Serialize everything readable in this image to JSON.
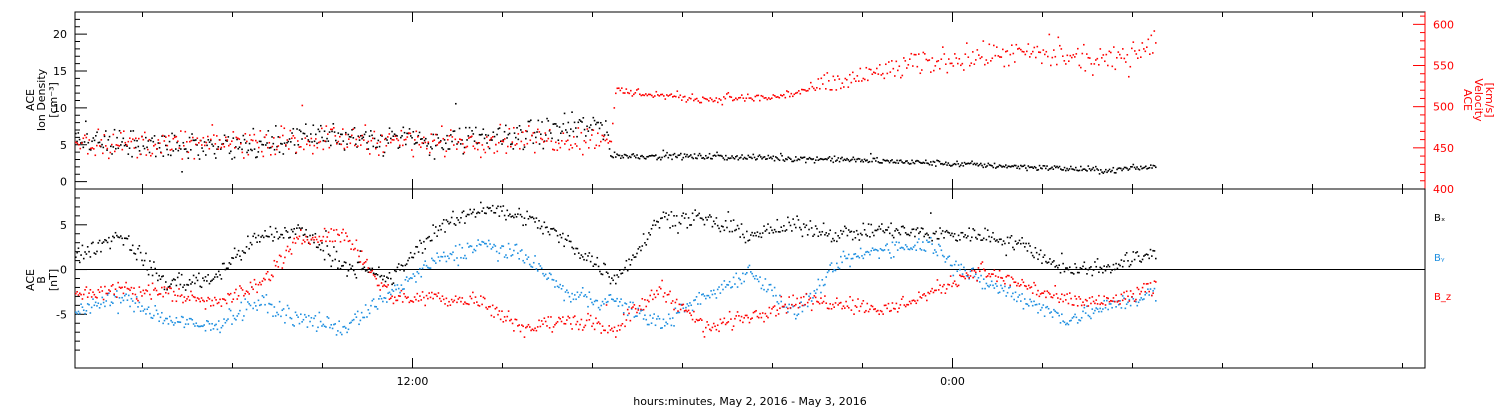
{
  "xaxis": {
    "label": "hours:minutes,  May  2, 2016 - May  3, 2016",
    "range_hours": [
      0,
      30
    ],
    "major_ticks": [
      {
        "hour": 7.5,
        "label": "12:00"
      },
      {
        "hour": 19.5,
        "label": "0:00"
      }
    ],
    "minor_tick_step_hours": 2
  },
  "chart_data": [
    {
      "type": "scatter",
      "title": "",
      "ylabel": [
        "ACE",
        "Ion Density",
        "[cm⁻³]"
      ],
      "ylabel_right": [
        "ACE",
        "Velocity",
        "[km/s]"
      ],
      "ylim": [
        -1,
        23
      ],
      "ylim_right": [
        400,
        615
      ],
      "yticks": [
        0,
        5,
        10,
        15,
        20
      ],
      "yticks_right": [
        400,
        450,
        500,
        550,
        600
      ],
      "series": [
        {
          "name": "",
          "axis": "left",
          "color": "#000000",
          "x": [
            0,
            2,
            4,
            6,
            8,
            10,
            11.8,
            11.9,
            14,
            17,
            20,
            23,
            24
          ],
          "y": [
            5.5,
            4.8,
            5.3,
            6.2,
            5.5,
            6.5,
            7.8,
            3.6,
            3.5,
            3.1,
            2.4,
            1.6,
            2.2
          ]
        },
        {
          "name": "",
          "axis": "right",
          "color": "#ff0000",
          "x": [
            0,
            2,
            4,
            6,
            8,
            10,
            11.9,
            12.0,
            14,
            15.5,
            17,
            18,
            19.5,
            21,
            23,
            24
          ],
          "y": [
            458,
            455,
            458,
            462,
            458,
            462,
            462,
            520,
            510,
            512,
            530,
            545,
            560,
            565,
            555,
            580
          ]
        }
      ]
    },
    {
      "type": "scatter",
      "title": "",
      "ylabel": [
        "ACE",
        "B",
        "[nT]"
      ],
      "ylim": [
        -11,
        9
      ],
      "yticks": [
        -5,
        0,
        5
      ],
      "zero_line": true,
      "legend_position": "right",
      "series": [
        {
          "name": "Bₓ",
          "color": "#000000",
          "x": [
            0,
            1,
            2,
            3,
            4,
            5,
            6,
            7,
            8,
            9,
            10,
            11,
            12,
            13,
            14,
            15,
            16,
            17,
            18,
            19,
            20,
            21,
            22,
            23,
            24
          ],
          "y": [
            1.5,
            4.0,
            -1.5,
            -1.0,
            3.5,
            4.5,
            0.5,
            -1.0,
            4.5,
            7.0,
            6.0,
            3.0,
            -1.0,
            6.0,
            5.5,
            4.0,
            5.0,
            4.0,
            4.5,
            4.0,
            4.0,
            3.0,
            0.0,
            0.5,
            2.0
          ]
        },
        {
          "name": "Bᵧ",
          "color": "#1e8fe0",
          "x": [
            0,
            1,
            2,
            3,
            4,
            5,
            6,
            7,
            8,
            9,
            10,
            11,
            12,
            13,
            14,
            15,
            16,
            17,
            18,
            19,
            20,
            21,
            22,
            23,
            24
          ],
          "y": [
            -4.5,
            -3.0,
            -5.5,
            -6.5,
            -3.5,
            -5.5,
            -6.5,
            -2.5,
            1.0,
            3.0,
            1.5,
            -3.0,
            -3.5,
            -6.0,
            -3.0,
            0.0,
            -5.0,
            1.0,
            2.5,
            3.0,
            -1.0,
            -3.0,
            -5.5,
            -4.0,
            -2.5
          ]
        },
        {
          "name": "B_z",
          "color": "#ff0000",
          "x": [
            0,
            1,
            2,
            3,
            4,
            5,
            6,
            7,
            8,
            9,
            10,
            11,
            12,
            13,
            14,
            15,
            16,
            17,
            18,
            19,
            20,
            21,
            22,
            23,
            24
          ],
          "y": [
            -3.0,
            -2.0,
            -2.5,
            -3.5,
            -2.0,
            3.5,
            4.0,
            -3.0,
            -3.0,
            -3.5,
            -6.5,
            -5.5,
            -6.5,
            -2.0,
            -6.5,
            -5.0,
            -3.5,
            -3.5,
            -4.5,
            -2.5,
            0.0,
            -1.5,
            -3.5,
            -3.5,
            -2.0
          ]
        }
      ]
    }
  ]
}
